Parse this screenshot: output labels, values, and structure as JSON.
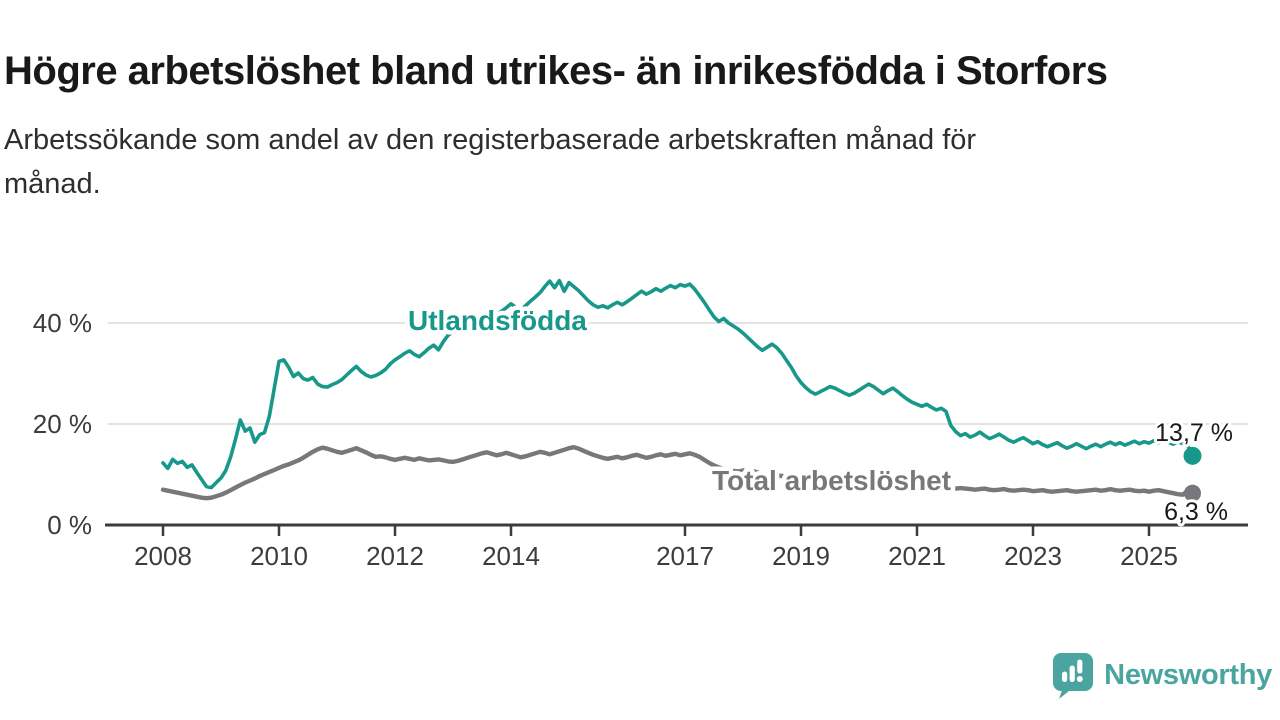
{
  "header": {
    "title": "Högre arbetslöshet bland utrikes- än inrikesfödda i Storfors",
    "subtitle_lines": [
      "Arbetssökande som andel av den registerbaserade arbetskraften månad för",
      "månad."
    ]
  },
  "chart_data": {
    "type": "line",
    "title": "Högre arbetslöshet bland utrikes- än inrikesfödda i Storfors",
    "subtitle": "Arbetssökande som andel av den registerbaserade arbetskraften månad för månad.",
    "grid": "horizontal",
    "legend_position": "inline-labels",
    "x_start_year": 2008,
    "points_per_year": 12,
    "x_tick_years": [
      2008,
      2010,
      2012,
      2014,
      2017,
      2019,
      2021,
      2023,
      2025
    ],
    "y_axis": {
      "tick_labels": [
        "0 %",
        "20 %",
        "40 %"
      ],
      "tick_values": [
        0,
        20,
        40
      ],
      "ylim": [
        0,
        52
      ]
    },
    "series": [
      {
        "name": "Utlandsfödda",
        "color": "#18988a",
        "end_label": "13,7 %",
        "last_value": 13.7,
        "dashed_tail_points": 3,
        "values": [
          12.3,
          11.2,
          13.0,
          12.2,
          12.6,
          11.4,
          11.9,
          10.4,
          9.0,
          7.6,
          7.4,
          8.4,
          9.3,
          10.8,
          13.5,
          17.0,
          20.8,
          18.6,
          19.2,
          16.4,
          17.9,
          18.3,
          21.5,
          27.0,
          32.4,
          32.7,
          31.2,
          29.4,
          30.1,
          29.0,
          28.7,
          29.2,
          27.9,
          27.4,
          27.3,
          27.8,
          28.2,
          28.8,
          29.7,
          30.6,
          31.4,
          30.4,
          29.7,
          29.3,
          29.6,
          30.1,
          30.8,
          31.9,
          32.7,
          33.3,
          34.0,
          34.5,
          33.8,
          33.3,
          34.1,
          35.0,
          35.6,
          34.7,
          36.3,
          37.6,
          38.2,
          38.6,
          38.2,
          39.0,
          39.6,
          40.1,
          39.5,
          40.3,
          41.0,
          41.7,
          42.3,
          43.0,
          43.8,
          43.1,
          42.6,
          43.4,
          44.3,
          45.1,
          46.0,
          47.2,
          48.3,
          47.0,
          48.4,
          46.3,
          48.0,
          47.2,
          46.4,
          45.4,
          44.4,
          43.6,
          43.1,
          43.4,
          43.0,
          43.6,
          44.1,
          43.6,
          44.2,
          44.9,
          45.6,
          46.3,
          45.7,
          46.2,
          46.8,
          46.3,
          46.9,
          47.4,
          47.0,
          47.6,
          47.3,
          47.7,
          46.7,
          45.4,
          44.1,
          42.6,
          41.2,
          40.3,
          40.9,
          40.0,
          39.4,
          38.8,
          38.0,
          37.1,
          36.2,
          35.3,
          34.6,
          35.2,
          35.8,
          35.1,
          34.0,
          32.6,
          31.2,
          29.5,
          28.2,
          27.2,
          26.4,
          25.9,
          26.4,
          26.9,
          27.4,
          27.1,
          26.6,
          26.1,
          25.7,
          26.1,
          26.7,
          27.3,
          27.9,
          27.4,
          26.7,
          26.0,
          26.6,
          27.1,
          26.4,
          25.6,
          24.9,
          24.3,
          23.9,
          23.5,
          23.9,
          23.3,
          22.8,
          23.1,
          22.5,
          19.7,
          18.5,
          17.7,
          18.1,
          17.4,
          17.8,
          18.4,
          17.7,
          17.1,
          17.5,
          18.0,
          17.4,
          16.8,
          16.4,
          16.9,
          17.3,
          16.7,
          16.1,
          16.5,
          15.9,
          15.5,
          15.9,
          16.3,
          15.7,
          15.2,
          15.6,
          16.1,
          15.6,
          15.1,
          15.6,
          16.0,
          15.5,
          16.0,
          16.4,
          15.9,
          16.3,
          15.8,
          16.2,
          16.6,
          16.1,
          16.5,
          16.2,
          16.7,
          16.3,
          16.8,
          16.4,
          16.0,
          16.5,
          16.1,
          15.7,
          13.7
        ]
      },
      {
        "name": "Total arbetslöshet",
        "color": "#77787b",
        "end_label": "6,3 %",
        "last_value": 6.3,
        "dashed_tail_points": 0,
        "values": [
          7.0,
          6.8,
          6.6,
          6.4,
          6.2,
          6.0,
          5.8,
          5.6,
          5.4,
          5.3,
          5.4,
          5.7,
          6.0,
          6.4,
          6.9,
          7.4,
          7.9,
          8.4,
          8.8,
          9.2,
          9.7,
          10.1,
          10.5,
          10.9,
          11.3,
          11.7,
          12.0,
          12.4,
          12.8,
          13.3,
          13.9,
          14.5,
          15.0,
          15.3,
          15.1,
          14.8,
          14.5,
          14.3,
          14.6,
          14.9,
          15.2,
          14.8,
          14.4,
          13.9,
          13.5,
          13.6,
          13.4,
          13.1,
          12.9,
          13.1,
          13.3,
          13.1,
          12.9,
          13.2,
          13.0,
          12.8,
          12.9,
          13.0,
          12.8,
          12.6,
          12.5,
          12.7,
          13.0,
          13.3,
          13.6,
          13.9,
          14.2,
          14.4,
          14.1,
          13.8,
          14.0,
          14.3,
          14.0,
          13.7,
          13.4,
          13.6,
          13.9,
          14.2,
          14.5,
          14.3,
          14.0,
          14.3,
          14.6,
          14.9,
          15.2,
          15.4,
          15.1,
          14.7,
          14.3,
          13.9,
          13.6,
          13.3,
          13.1,
          13.3,
          13.5,
          13.2,
          13.4,
          13.7,
          13.9,
          13.6,
          13.3,
          13.5,
          13.8,
          14.0,
          13.7,
          13.9,
          14.1,
          13.8,
          14.0,
          14.2,
          13.9,
          13.5,
          12.9,
          12.3,
          11.8,
          11.4,
          11.1,
          10.9,
          10.7,
          10.6,
          10.8,
          10.9,
          10.7,
          10.4,
          10.2,
          10.0,
          9.9,
          9.8,
          9.7,
          9.6,
          9.5,
          9.4,
          9.5,
          9.6,
          9.4,
          9.2,
          9.0,
          8.9,
          9.0,
          9.1,
          8.9,
          8.7,
          8.6,
          8.5,
          8.7,
          8.9,
          9.3,
          9.6,
          9.4,
          9.2,
          9.0,
          8.8,
          8.6,
          8.4,
          8.2,
          8.0,
          7.9,
          7.8,
          7.7,
          7.6,
          7.5,
          7.4,
          7.3,
          7.2,
          7.2,
          7.3,
          7.2,
          7.1,
          7.0,
          7.1,
          7.2,
          7.0,
          6.9,
          7.0,
          7.1,
          6.9,
          6.8,
          6.9,
          7.0,
          6.9,
          6.7,
          6.8,
          6.9,
          6.7,
          6.6,
          6.7,
          6.8,
          6.9,
          6.7,
          6.6,
          6.7,
          6.8,
          6.9,
          7.0,
          6.8,
          6.9,
          7.1,
          6.9,
          6.8,
          6.9,
          7.0,
          6.8,
          6.7,
          6.8,
          6.6,
          6.8,
          6.9,
          6.7,
          6.5,
          6.3,
          6.1,
          6.0,
          6.8,
          6.3
        ]
      }
    ]
  },
  "colors": {
    "accent_teal": "#18988a",
    "series_gray": "#77787b",
    "gridline": "#dcdcdc",
    "axis": "#3c3c3c",
    "text_dark": "#191919",
    "brand_teal": "#4aa5a0"
  },
  "branding": {
    "logo_text": "Newsworthy",
    "logo_icon": "newsworthy-speech-bubble-barchart-icon"
  }
}
